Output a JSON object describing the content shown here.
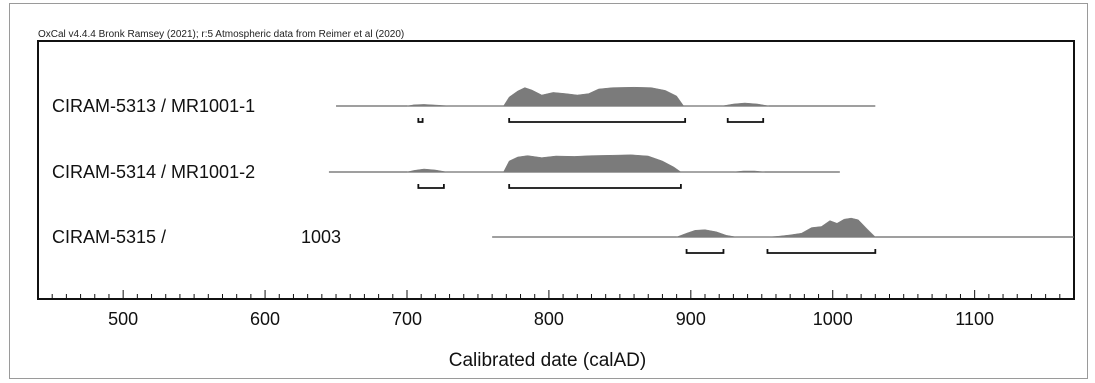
{
  "header": "OxCal v4.4.4 Bronk Ramsey (2021); r:5 Atmospheric data from Reimer et al (2020)",
  "chart_data": {
    "type": "area",
    "title": "",
    "xlabel": "Calibrated date (calAD)",
    "ylabel": "",
    "xlim": [
      440,
      1170
    ],
    "xticks": [
      500,
      600,
      700,
      800,
      900,
      1000,
      1100
    ],
    "grid": false,
    "legend": "none",
    "colors": {
      "fill": "#7b7b7b",
      "line": "#666666",
      "axis": "#111111"
    },
    "samples": [
      {
        "label": "CIRAM-5313 / MR1001-1",
        "range": [
          650,
          1030
        ],
        "density": [
          [
            700,
            0
          ],
          [
            705,
            0.06
          ],
          [
            712,
            0.08
          ],
          [
            722,
            0.04
          ],
          [
            730,
            0
          ],
          [
            768,
            0
          ],
          [
            772,
            0.45
          ],
          [
            778,
            0.75
          ],
          [
            783,
            0.92
          ],
          [
            788,
            0.8
          ],
          [
            795,
            0.55
          ],
          [
            803,
            0.68
          ],
          [
            812,
            0.62
          ],
          [
            820,
            0.55
          ],
          [
            828,
            0.62
          ],
          [
            835,
            0.85
          ],
          [
            845,
            0.92
          ],
          [
            860,
            0.94
          ],
          [
            872,
            0.92
          ],
          [
            882,
            0.78
          ],
          [
            890,
            0.5
          ],
          [
            895,
            0
          ],
          [
            922,
            0
          ],
          [
            930,
            0.1
          ],
          [
            938,
            0.15
          ],
          [
            947,
            0.1
          ],
          [
            955,
            0
          ]
        ],
        "ranges_hpd": [
          [
            708,
            711
          ],
          [
            772,
            896
          ],
          [
            926,
            951
          ]
        ]
      },
      {
        "label": "CIRAM-5314 / MR1001-2",
        "range": [
          645,
          1005
        ],
        "density": [
          [
            700,
            0
          ],
          [
            705,
            0.08
          ],
          [
            712,
            0.15
          ],
          [
            720,
            0.1
          ],
          [
            728,
            0
          ],
          [
            768,
            0
          ],
          [
            772,
            0.55
          ],
          [
            778,
            0.75
          ],
          [
            785,
            0.82
          ],
          [
            795,
            0.72
          ],
          [
            805,
            0.8
          ],
          [
            818,
            0.78
          ],
          [
            830,
            0.82
          ],
          [
            845,
            0.84
          ],
          [
            858,
            0.86
          ],
          [
            870,
            0.8
          ],
          [
            880,
            0.55
          ],
          [
            888,
            0.25
          ],
          [
            893,
            0
          ],
          [
            930,
            0
          ],
          [
            937,
            0.05
          ],
          [
            945,
            0.05
          ],
          [
            952,
            0
          ]
        ],
        "ranges_hpd": [
          [
            708,
            726
          ],
          [
            772,
            893
          ]
        ]
      },
      {
        "label": "CIRAM-5315 /",
        "label_extra": "1003",
        "range": [
          760,
          1170
        ],
        "density": [
          [
            890,
            0
          ],
          [
            897,
            0.18
          ],
          [
            903,
            0.32
          ],
          [
            910,
            0.35
          ],
          [
            918,
            0.25
          ],
          [
            925,
            0.08
          ],
          [
            932,
            0
          ],
          [
            955,
            0
          ],
          [
            962,
            0.04
          ],
          [
            970,
            0.1
          ],
          [
            978,
            0.18
          ],
          [
            985,
            0.45
          ],
          [
            992,
            0.5
          ],
          [
            998,
            0.78
          ],
          [
            1003,
            0.65
          ],
          [
            1008,
            0.85
          ],
          [
            1013,
            0.9
          ],
          [
            1018,
            0.82
          ],
          [
            1024,
            0.4
          ],
          [
            1030,
            0
          ]
        ],
        "ranges_hpd": [
          [
            897,
            923
          ],
          [
            954,
            1030
          ]
        ]
      }
    ]
  }
}
